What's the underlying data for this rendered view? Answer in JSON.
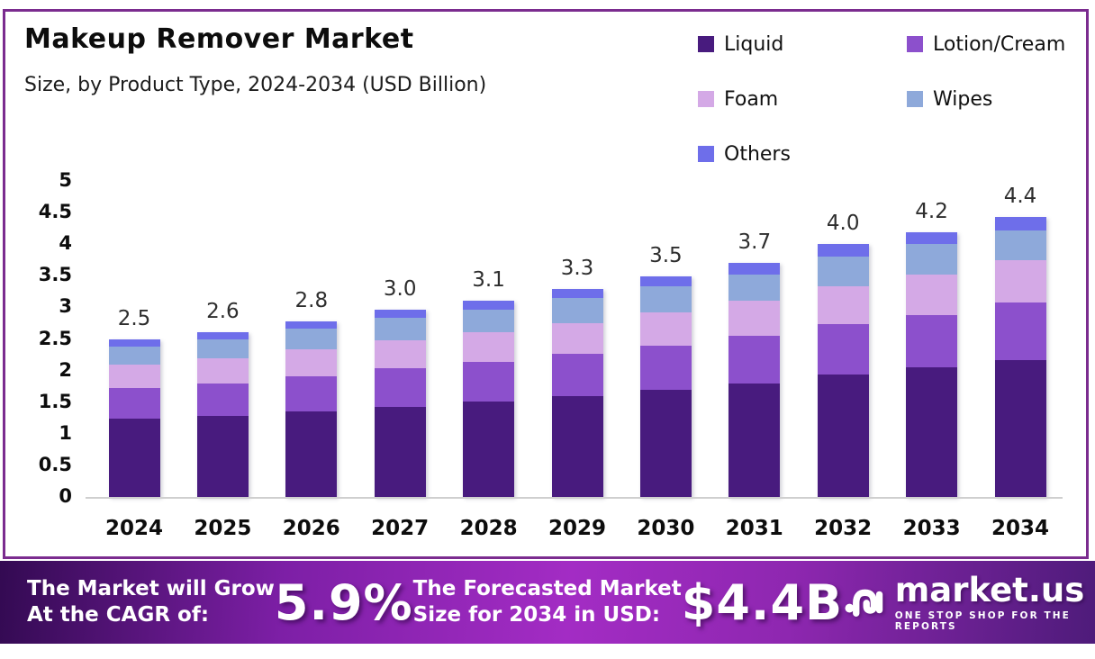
{
  "header": {
    "title": "Makeup Remover Market",
    "subtitle": "Size, by Product Type, 2024-2034 (USD Billion)"
  },
  "colors": {
    "liquid": "#481B7E",
    "lotion_cream": "#8C50CC",
    "foam": "#D4A9E6",
    "wipes": "#8EA9DA",
    "others": "#6E6EEA",
    "frame_border": "#7B2C8F",
    "banner_gradient_left": "#330A52",
    "banner_gradient_center": "#A32CC4",
    "banner_gradient_right": "#4E1B7A"
  },
  "chart_data": {
    "type": "bar",
    "stacked": true,
    "title": "Makeup Remover Market",
    "subtitle": "Size, by Product Type, 2024-2034 (USD Billion)",
    "xlabel": "",
    "ylabel": "",
    "ylim": [
      0,
      5
    ],
    "grid": false,
    "legend_position": "top-right",
    "yticks": [
      "5",
      "4.5",
      "4",
      "3.5",
      "3",
      "2.5",
      "2",
      "1.5",
      "1",
      "0.5",
      "0"
    ],
    "categories": [
      "2024",
      "2025",
      "2026",
      "2027",
      "2028",
      "2029",
      "2030",
      "2031",
      "2032",
      "2033",
      "2034"
    ],
    "totals": [
      "2.5",
      "2.6",
      "2.8",
      "3.0",
      "3.1",
      "3.3",
      "3.5",
      "3.7",
      "4.0",
      "4.2",
      "4.4"
    ],
    "series": [
      {
        "name": "Liquid",
        "color": "#481B7E",
        "values": [
          1.24,
          1.28,
          1.36,
          1.43,
          1.51,
          1.6,
          1.7,
          1.8,
          1.93,
          2.05,
          2.17
        ]
      },
      {
        "name": "Lotion/Cream",
        "color": "#8C50CC",
        "values": [
          0.49,
          0.52,
          0.55,
          0.6,
          0.63,
          0.66,
          0.7,
          0.75,
          0.8,
          0.83,
          0.9
        ]
      },
      {
        "name": "Foam",
        "color": "#D4A9E6",
        "values": [
          0.37,
          0.39,
          0.43,
          0.45,
          0.47,
          0.49,
          0.52,
          0.55,
          0.6,
          0.64,
          0.67
        ]
      },
      {
        "name": "Wipes",
        "color": "#8EA9DA",
        "values": [
          0.28,
          0.3,
          0.32,
          0.36,
          0.35,
          0.4,
          0.42,
          0.42,
          0.47,
          0.48,
          0.47
        ]
      },
      {
        "name": "Others",
        "color": "#6E6EEA",
        "values": [
          0.12,
          0.12,
          0.12,
          0.13,
          0.14,
          0.14,
          0.15,
          0.18,
          0.2,
          0.19,
          0.22
        ]
      }
    ]
  },
  "banner": {
    "cagr_label_line1": "The Market will Grow",
    "cagr_label_line2": "At the CAGR of:",
    "cagr_value": "5.9%",
    "forecast_label_line1": "The Forecasted Market",
    "forecast_label_line2": "Size for 2034 in USD:",
    "forecast_value": "$4.4B",
    "logo_text": "market.us",
    "logo_tagline": "ONE STOP SHOP FOR THE REPORTS"
  }
}
